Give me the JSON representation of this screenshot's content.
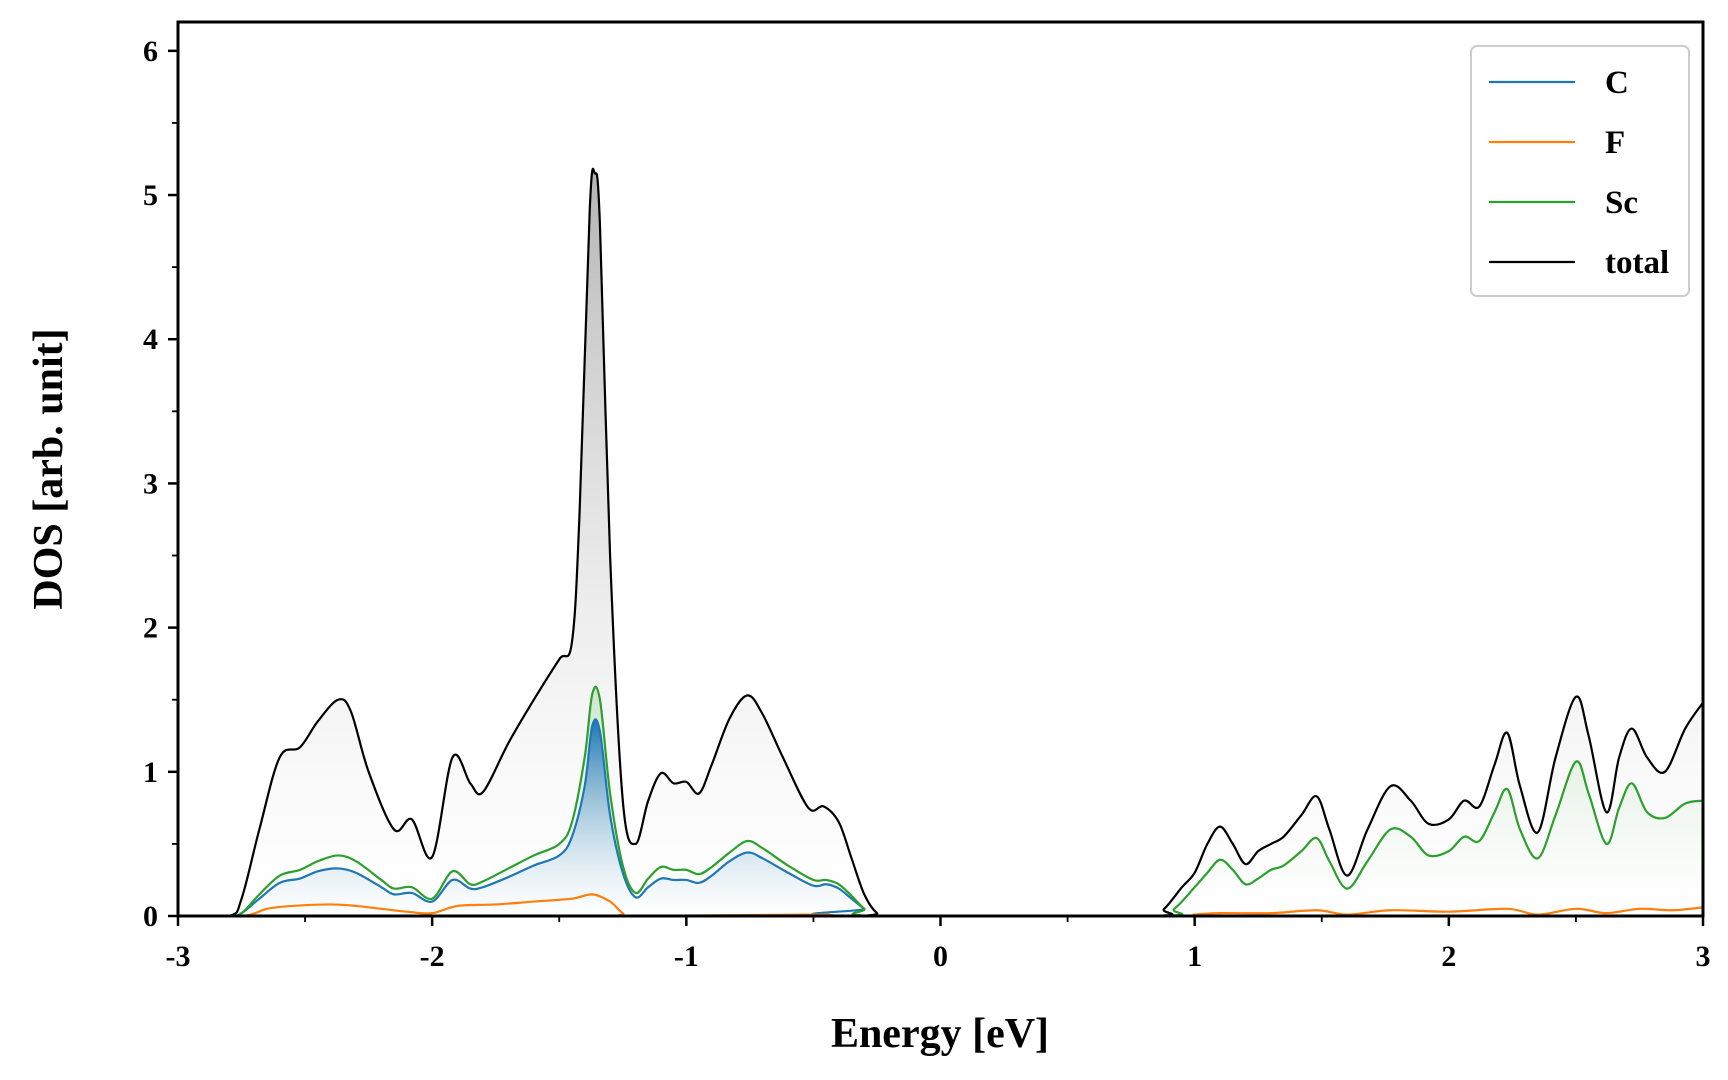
{
  "chart_data": {
    "type": "line",
    "title": "",
    "xlabel": "Energy [eV]",
    "ylabel": "DOS [arb. unit]",
    "xlim": [
      -3,
      3
    ],
    "ylim": [
      0,
      6.2
    ],
    "xticks": [
      -3,
      -2,
      -1,
      0,
      1,
      2,
      3
    ],
    "xtick_labels": [
      "-3",
      "-2",
      "-1",
      "0",
      "1",
      "2",
      "3"
    ],
    "yticks": [
      0,
      1,
      2,
      3,
      4,
      5,
      6
    ],
    "ytick_labels": [
      "0",
      "1",
      "2",
      "3",
      "4",
      "5",
      "6"
    ],
    "grid": false,
    "legend_position": "top-right",
    "series": [
      {
        "name": "C",
        "color": "#1f77b4",
        "fill": true,
        "points": [
          [
            -3,
            0
          ],
          [
            -2.8,
            0
          ],
          [
            -2.75,
            0.02
          ],
          [
            -2.68,
            0.12
          ],
          [
            -2.6,
            0.23
          ],
          [
            -2.52,
            0.26
          ],
          [
            -2.45,
            0.31
          ],
          [
            -2.37,
            0.33
          ],
          [
            -2.3,
            0.3
          ],
          [
            -2.2,
            0.2
          ],
          [
            -2.15,
            0.15
          ],
          [
            -2.08,
            0.16
          ],
          [
            -2.0,
            0.1
          ],
          [
            -1.92,
            0.25
          ],
          [
            -1.85,
            0.19
          ],
          [
            -1.8,
            0.2
          ],
          [
            -1.7,
            0.27
          ],
          [
            -1.6,
            0.35
          ],
          [
            -1.5,
            0.42
          ],
          [
            -1.45,
            0.55
          ],
          [
            -1.4,
            0.9
          ],
          [
            -1.37,
            1.32
          ],
          [
            -1.34,
            1.28
          ],
          [
            -1.3,
            0.7
          ],
          [
            -1.25,
            0.3
          ],
          [
            -1.2,
            0.13
          ],
          [
            -1.15,
            0.2
          ],
          [
            -1.1,
            0.26
          ],
          [
            -1.05,
            0.25
          ],
          [
            -1.0,
            0.25
          ],
          [
            -0.95,
            0.23
          ],
          [
            -0.9,
            0.28
          ],
          [
            -0.83,
            0.38
          ],
          [
            -0.76,
            0.44
          ],
          [
            -0.7,
            0.4
          ],
          [
            -0.6,
            0.3
          ],
          [
            -0.5,
            0.21
          ],
          [
            -0.45,
            0.22
          ],
          [
            -0.4,
            0.19
          ],
          [
            -0.35,
            0.12
          ],
          [
            -0.3,
            0.05
          ],
          [
            -0.25,
            0
          ],
          [
            3,
            0
          ]
        ]
      },
      {
        "name": "F",
        "color": "#ff7f0e",
        "fill": false,
        "points": [
          [
            -3,
            0
          ],
          [
            -2.75,
            0
          ],
          [
            -2.65,
            0.05
          ],
          [
            -2.55,
            0.07
          ],
          [
            -2.4,
            0.08
          ],
          [
            -2.3,
            0.07
          ],
          [
            -2.1,
            0.03
          ],
          [
            -2.0,
            0.02
          ],
          [
            -1.9,
            0.07
          ],
          [
            -1.75,
            0.08
          ],
          [
            -1.6,
            0.1
          ],
          [
            -1.45,
            0.12
          ],
          [
            -1.37,
            0.15
          ],
          [
            -1.3,
            0.1
          ],
          [
            -1.25,
            0.02
          ],
          [
            -1.2,
            0
          ],
          [
            -0.5,
            0.01
          ],
          [
            -0.3,
            0
          ],
          [
            0.9,
            0
          ],
          [
            1.0,
            0.01
          ],
          [
            1.1,
            0.02
          ],
          [
            1.3,
            0.02
          ],
          [
            1.48,
            0.04
          ],
          [
            1.6,
            0.01
          ],
          [
            1.77,
            0.04
          ],
          [
            2.0,
            0.03
          ],
          [
            2.23,
            0.05
          ],
          [
            2.35,
            0.01
          ],
          [
            2.5,
            0.05
          ],
          [
            2.62,
            0.02
          ],
          [
            2.75,
            0.05
          ],
          [
            2.88,
            0.04
          ],
          [
            3.0,
            0.06
          ]
        ]
      },
      {
        "name": "Sc",
        "color": "#2ca02c",
        "fill": true,
        "points": [
          [
            -3,
            0
          ],
          [
            -2.8,
            0
          ],
          [
            -2.75,
            0.02
          ],
          [
            -2.68,
            0.15
          ],
          [
            -2.6,
            0.28
          ],
          [
            -2.52,
            0.32
          ],
          [
            -2.45,
            0.38
          ],
          [
            -2.37,
            0.42
          ],
          [
            -2.3,
            0.38
          ],
          [
            -2.2,
            0.25
          ],
          [
            -2.15,
            0.19
          ],
          [
            -2.08,
            0.2
          ],
          [
            -2.0,
            0.12
          ],
          [
            -1.92,
            0.31
          ],
          [
            -1.85,
            0.22
          ],
          [
            -1.8,
            0.24
          ],
          [
            -1.7,
            0.33
          ],
          [
            -1.6,
            0.42
          ],
          [
            -1.5,
            0.5
          ],
          [
            -1.45,
            0.65
          ],
          [
            -1.4,
            1.1
          ],
          [
            -1.37,
            1.54
          ],
          [
            -1.34,
            1.5
          ],
          [
            -1.3,
            0.85
          ],
          [
            -1.25,
            0.35
          ],
          [
            -1.2,
            0.16
          ],
          [
            -1.15,
            0.26
          ],
          [
            -1.1,
            0.34
          ],
          [
            -1.05,
            0.32
          ],
          [
            -1.0,
            0.32
          ],
          [
            -0.95,
            0.29
          ],
          [
            -0.9,
            0.34
          ],
          [
            -0.83,
            0.44
          ],
          [
            -0.76,
            0.52
          ],
          [
            -0.7,
            0.47
          ],
          [
            -0.6,
            0.35
          ],
          [
            -0.5,
            0.25
          ],
          [
            -0.45,
            0.25
          ],
          [
            -0.4,
            0.22
          ],
          [
            -0.35,
            0.14
          ],
          [
            -0.3,
            0.05
          ],
          [
            -0.25,
            0
          ],
          [
            0.85,
            0
          ],
          [
            0.92,
            0.05
          ],
          [
            1.0,
            0.2
          ],
          [
            1.05,
            0.3
          ],
          [
            1.1,
            0.39
          ],
          [
            1.15,
            0.32
          ],
          [
            1.2,
            0.22
          ],
          [
            1.25,
            0.26
          ],
          [
            1.3,
            0.32
          ],
          [
            1.35,
            0.35
          ],
          [
            1.42,
            0.45
          ],
          [
            1.48,
            0.54
          ],
          [
            1.53,
            0.38
          ],
          [
            1.6,
            0.19
          ],
          [
            1.68,
            0.38
          ],
          [
            1.77,
            0.6
          ],
          [
            1.85,
            0.55
          ],
          [
            1.92,
            0.42
          ],
          [
            2.0,
            0.45
          ],
          [
            2.06,
            0.55
          ],
          [
            2.12,
            0.52
          ],
          [
            2.18,
            0.72
          ],
          [
            2.23,
            0.88
          ],
          [
            2.28,
            0.6
          ],
          [
            2.35,
            0.4
          ],
          [
            2.42,
            0.7
          ],
          [
            2.5,
            1.07
          ],
          [
            2.55,
            0.85
          ],
          [
            2.62,
            0.5
          ],
          [
            2.67,
            0.75
          ],
          [
            2.72,
            0.92
          ],
          [
            2.78,
            0.72
          ],
          [
            2.85,
            0.68
          ],
          [
            2.93,
            0.78
          ],
          [
            3.0,
            0.8
          ]
        ]
      },
      {
        "name": "total",
        "color": "#000000",
        "fill": true,
        "points": [
          [
            -3,
            0
          ],
          [
            -2.8,
            0
          ],
          [
            -2.75,
            0.12
          ],
          [
            -2.68,
            0.6
          ],
          [
            -2.6,
            1.1
          ],
          [
            -2.52,
            1.17
          ],
          [
            -2.45,
            1.35
          ],
          [
            -2.37,
            1.5
          ],
          [
            -2.32,
            1.42
          ],
          [
            -2.25,
            1.0
          ],
          [
            -2.15,
            0.6
          ],
          [
            -2.08,
            0.67
          ],
          [
            -2.0,
            0.41
          ],
          [
            -1.92,
            1.1
          ],
          [
            -1.85,
            0.92
          ],
          [
            -1.8,
            0.86
          ],
          [
            -1.7,
            1.2
          ],
          [
            -1.6,
            1.5
          ],
          [
            -1.5,
            1.78
          ],
          [
            -1.45,
            1.9
          ],
          [
            -1.42,
            2.8
          ],
          [
            -1.38,
            4.9
          ],
          [
            -1.36,
            5.15
          ],
          [
            -1.34,
            4.8
          ],
          [
            -1.3,
            2.5
          ],
          [
            -1.25,
            0.8
          ],
          [
            -1.2,
            0.5
          ],
          [
            -1.15,
            0.8
          ],
          [
            -1.1,
            0.99
          ],
          [
            -1.05,
            0.92
          ],
          [
            -1.0,
            0.93
          ],
          [
            -0.95,
            0.85
          ],
          [
            -0.9,
            1.05
          ],
          [
            -0.83,
            1.37
          ],
          [
            -0.76,
            1.53
          ],
          [
            -0.7,
            1.4
          ],
          [
            -0.62,
            1.1
          ],
          [
            -0.52,
            0.75
          ],
          [
            -0.46,
            0.76
          ],
          [
            -0.4,
            0.65
          ],
          [
            -0.35,
            0.4
          ],
          [
            -0.3,
            0.15
          ],
          [
            -0.25,
            0.02
          ],
          [
            -0.2,
            0
          ],
          [
            0.82,
            0
          ],
          [
            0.88,
            0.05
          ],
          [
            0.95,
            0.2
          ],
          [
            1.0,
            0.3
          ],
          [
            1.05,
            0.5
          ],
          [
            1.1,
            0.62
          ],
          [
            1.15,
            0.5
          ],
          [
            1.2,
            0.36
          ],
          [
            1.25,
            0.45
          ],
          [
            1.3,
            0.5
          ],
          [
            1.35,
            0.55
          ],
          [
            1.42,
            0.7
          ],
          [
            1.48,
            0.83
          ],
          [
            1.53,
            0.6
          ],
          [
            1.6,
            0.28
          ],
          [
            1.68,
            0.6
          ],
          [
            1.77,
            0.9
          ],
          [
            1.85,
            0.8
          ],
          [
            1.92,
            0.64
          ],
          [
            2.0,
            0.67
          ],
          [
            2.06,
            0.8
          ],
          [
            2.12,
            0.76
          ],
          [
            2.18,
            1.05
          ],
          [
            2.23,
            1.27
          ],
          [
            2.28,
            0.9
          ],
          [
            2.35,
            0.58
          ],
          [
            2.42,
            1.1
          ],
          [
            2.5,
            1.52
          ],
          [
            2.55,
            1.25
          ],
          [
            2.62,
            0.72
          ],
          [
            2.67,
            1.1
          ],
          [
            2.72,
            1.3
          ],
          [
            2.78,
            1.1
          ],
          [
            2.85,
            1.0
          ],
          [
            2.93,
            1.3
          ],
          [
            3.0,
            1.48
          ]
        ]
      }
    ]
  }
}
